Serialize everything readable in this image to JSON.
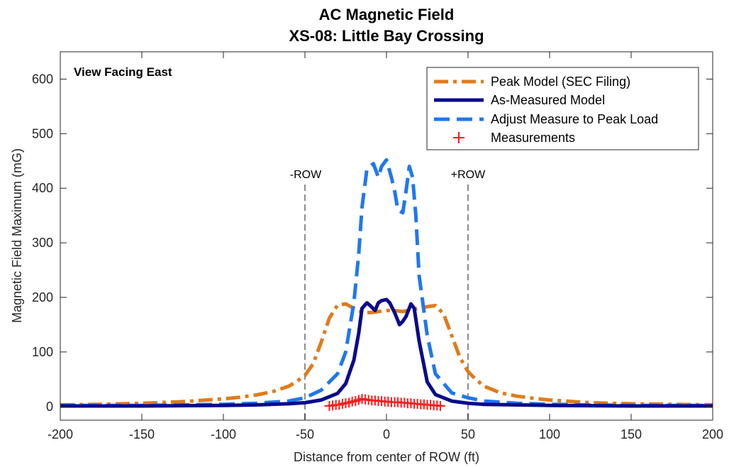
{
  "chart_data": {
    "type": "line",
    "title": [
      "AC Magnetic Field",
      "XS-08: Little Bay Crossing"
    ],
    "xlabel": "Distance from center of ROW (ft)",
    "ylabel": "Magnetic Field Maximum (mG)",
    "xlim": [
      -200,
      200
    ],
    "ylim": [
      -25,
      650
    ],
    "xticks": [
      -200,
      -150,
      -100,
      -50,
      0,
      50,
      100,
      150,
      200
    ],
    "yticks": [
      0,
      100,
      200,
      300,
      400,
      500,
      600
    ],
    "grid": false,
    "legend_position": "top-right",
    "annotations": [
      {
        "text": "View Facing East",
        "x": -200,
        "y": 650,
        "position": "top-left"
      },
      {
        "text": "-ROW",
        "x": -50,
        "y": 450
      },
      {
        "text": "+ROW",
        "x": 50,
        "y": 450
      }
    ],
    "reference_lines": [
      {
        "x": -50,
        "style": "dashed",
        "color": "#8c8c8c",
        "label": "-ROW"
      },
      {
        "x": 50,
        "style": "dashed",
        "color": "#8c8c8c",
        "label": "+ROW"
      }
    ],
    "series": [
      {
        "name": "Peak Model (SEC Filing)",
        "style": "dash-dot",
        "color": "#e07b1a",
        "x": [
          -200,
          -175,
          -150,
          -125,
          -100,
          -90,
          -80,
          -70,
          -60,
          -55,
          -50,
          -45,
          -40,
          -35,
          -30,
          -25,
          -20,
          -15,
          -10,
          -5,
          0,
          5,
          10,
          15,
          20,
          25,
          30,
          35,
          40,
          45,
          50,
          55,
          60,
          70,
          80,
          90,
          100,
          125,
          150,
          175,
          200
        ],
        "y": [
          3,
          4,
          6,
          9,
          14,
          17,
          21,
          27,
          37,
          46,
          57,
          78,
          118,
          162,
          186,
          188,
          180,
          173,
          172,
          174,
          176,
          176,
          174,
          177,
          180,
          183,
          185,
          170,
          130,
          90,
          64,
          49,
          37,
          25,
          19,
          15,
          12,
          7,
          5,
          4,
          3
        ]
      },
      {
        "name": "As-Measured Model",
        "style": "solid",
        "color": "#0a0a8c",
        "x": [
          -200,
          -150,
          -100,
          -80,
          -60,
          -50,
          -40,
          -30,
          -25,
          -20,
          -17,
          -15,
          -12,
          -10,
          -7,
          -5,
          -3,
          0,
          2,
          5,
          8,
          10,
          12,
          15,
          17,
          20,
          25,
          30,
          40,
          50,
          60,
          80,
          100,
          150,
          200
        ],
        "y": [
          1,
          1,
          2,
          3,
          5,
          7,
          12,
          24,
          42,
          85,
          135,
          180,
          190,
          185,
          176,
          190,
          194,
          196,
          190,
          172,
          150,
          156,
          165,
          188,
          180,
          120,
          45,
          22,
          10,
          6,
          4,
          3,
          2,
          1,
          1
        ]
      },
      {
        "name": "Adjust Measure to Peak Load",
        "style": "dashed",
        "color": "#1f77f2",
        "x": [
          -200,
          -150,
          -100,
          -80,
          -60,
          -50,
          -40,
          -30,
          -25,
          -20,
          -17,
          -15,
          -12,
          -8,
          -5,
          -3,
          0,
          3,
          5,
          7,
          10,
          12,
          14,
          16,
          18,
          20,
          25,
          30,
          40,
          50,
          60,
          80,
          100,
          150,
          200
        ],
        "y": [
          2,
          2,
          4,
          6,
          10,
          16,
          30,
          60,
          100,
          190,
          280,
          365,
          435,
          445,
          420,
          440,
          452,
          420,
          395,
          360,
          355,
          395,
          440,
          420,
          350,
          240,
          130,
          60,
          25,
          16,
          10,
          6,
          4,
          2,
          2
        ]
      },
      {
        "name": "Measurements",
        "style": "markers",
        "marker": "+",
        "color": "#ff1a1a",
        "x": [
          -35,
          -33,
          -31,
          -29,
          -27,
          -25,
          -23,
          -21,
          -19,
          -17,
          -15,
          -13,
          -11,
          -9,
          -7,
          -5,
          -3,
          -1,
          1,
          3,
          5,
          7,
          9,
          11,
          13,
          15,
          17,
          19,
          21,
          23,
          25,
          27,
          29,
          31,
          33
        ],
        "y": [
          1,
          2,
          3,
          3,
          5,
          6,
          7,
          9,
          10,
          12,
          14,
          13,
          12,
          11,
          11,
          10,
          10,
          9,
          9,
          8,
          8,
          8,
          7,
          7,
          6,
          6,
          5,
          5,
          4,
          4,
          3,
          3,
          2,
          2,
          1
        ]
      }
    ]
  }
}
